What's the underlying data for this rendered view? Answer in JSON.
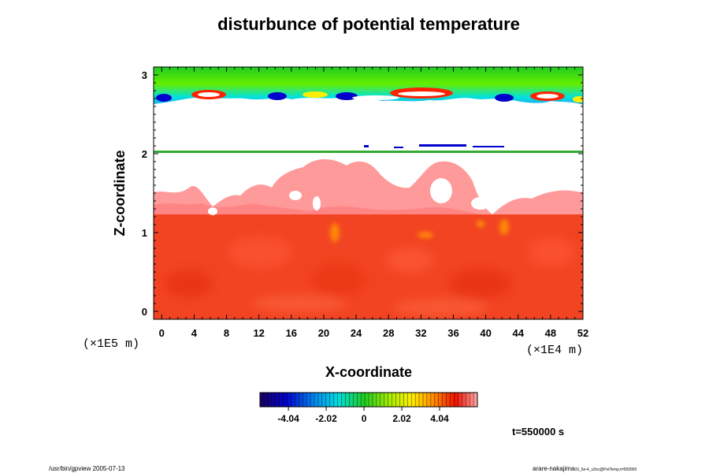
{
  "chart_data": {
    "type": "heatmap",
    "title": "disturbunce of potential temperature",
    "xlabel": "X-coordinate",
    "ylabel": "Z-coordinate",
    "x_unit": "(×1E4 m)",
    "y_unit": "(×1E5 m)",
    "xlim": [
      -1,
      52
    ],
    "ylim": [
      -0.1,
      3.1
    ],
    "x_ticks": [
      "0",
      "4",
      "8",
      "12",
      "16",
      "20",
      "24",
      "28",
      "32",
      "36",
      "40",
      "44",
      "48",
      "52"
    ],
    "y_ticks": [
      "0",
      "1",
      "2",
      "3"
    ],
    "x_tick_values": [
      0,
      4,
      8,
      12,
      16,
      20,
      24,
      28,
      32,
      36,
      40,
      44,
      48,
      52
    ],
    "y_tick_values": [
      0,
      1,
      2,
      3
    ],
    "colorbar": {
      "ticks": [
        "-4.04",
        "-2.02",
        "0",
        "2.02",
        "4.04"
      ],
      "tick_values": [
        -4.04,
        -2.02,
        0,
        2.02,
        4.04
      ],
      "range": [
        -5.56,
        6.06
      ]
    },
    "annotation": "t=550000 s"
  },
  "footer": {
    "left": "/usr/bin/gpview 2005-07-13",
    "right_main": "arare-nakajima",
    "right_sub": "03_5e-4_v2nc@PotTemp,t=550000"
  }
}
